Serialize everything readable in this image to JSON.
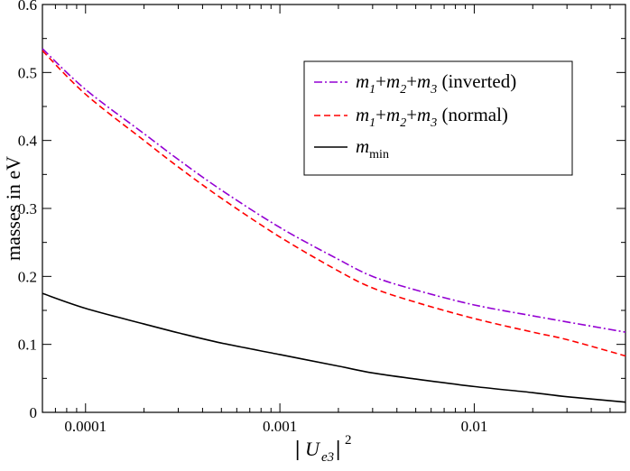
{
  "chart_data": {
    "type": "line",
    "title": "",
    "xlabel": "|U_e3|^2",
    "ylabel": "masses in eV",
    "xscale": "log",
    "xlim": [
      6e-05,
      0.06
    ],
    "ylim": [
      0,
      0.6
    ],
    "grid": false,
    "x_ticks": [
      {
        "value": 0.0001,
        "label": "0.0001"
      },
      {
        "value": 0.001,
        "label": "0.001"
      },
      {
        "value": 0.01,
        "label": "0.01"
      }
    ],
    "y_ticks": [
      {
        "value": 0,
        "label": "0"
      },
      {
        "value": 0.1,
        "label": "0.1"
      },
      {
        "value": 0.2,
        "label": "0.2"
      },
      {
        "value": 0.3,
        "label": "0.3"
      },
      {
        "value": 0.4,
        "label": "0.4"
      },
      {
        "value": 0.5,
        "label": "0.5"
      },
      {
        "value": 0.6,
        "label": "0.6"
      }
    ],
    "legend_position": "top-right",
    "series": [
      {
        "name": "m1+m2+m3 (inverted)",
        "legend_parts": [
          "m",
          "1",
          "+m",
          "2",
          "+m",
          "3",
          " (inverted)"
        ],
        "color": "#9400d3",
        "style": "dash-dot",
        "x": [
          6e-05,
          0.0001,
          0.0002,
          0.0003,
          0.0005,
          0.001,
          0.002,
          0.003,
          0.005,
          0.01,
          0.02,
          0.03,
          0.06
        ],
        "y": [
          0.535,
          0.475,
          0.41,
          0.372,
          0.327,
          0.272,
          0.225,
          0.2,
          0.18,
          0.158,
          0.142,
          0.133,
          0.118
        ]
      },
      {
        "name": "m1+m2+m3 (normal)",
        "legend_parts": [
          "m",
          "1",
          "+m",
          "2",
          "+m",
          "3",
          " (normal)"
        ],
        "color": "#ff0000",
        "style": "dashed",
        "x": [
          6e-05,
          0.0001,
          0.0002,
          0.0003,
          0.0005,
          0.001,
          0.002,
          0.003,
          0.005,
          0.01,
          0.02,
          0.03,
          0.06
        ],
        "y": [
          0.532,
          0.468,
          0.4,
          0.361,
          0.315,
          0.258,
          0.208,
          0.183,
          0.162,
          0.138,
          0.118,
          0.107,
          0.083
        ]
      },
      {
        "name": "m_min",
        "legend_parts": [
          "m",
          "min"
        ],
        "color": "#000000",
        "style": "solid",
        "x": [
          6e-05,
          0.0001,
          0.0002,
          0.0003,
          0.0005,
          0.001,
          0.002,
          0.003,
          0.005,
          0.01,
          0.02,
          0.03,
          0.06
        ],
        "y": [
          0.175,
          0.153,
          0.13,
          0.117,
          0.102,
          0.085,
          0.068,
          0.058,
          0.049,
          0.038,
          0.029,
          0.023,
          0.015
        ]
      }
    ]
  }
}
